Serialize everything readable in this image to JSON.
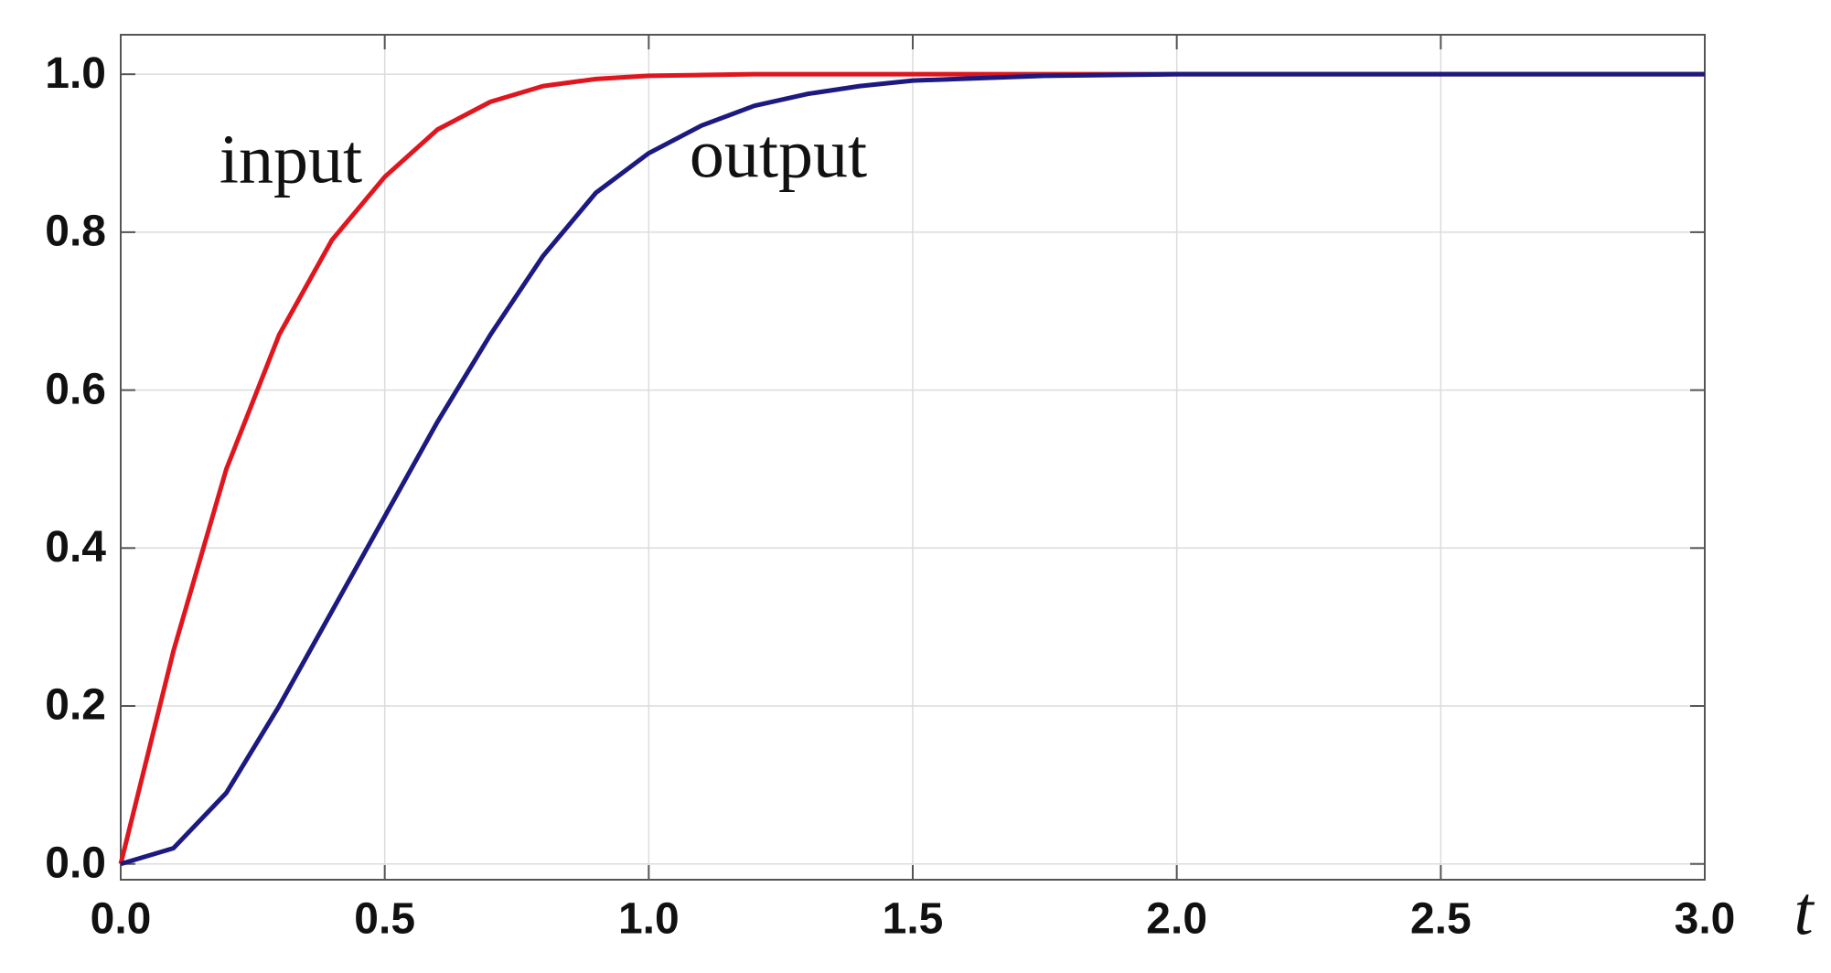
{
  "chart_data": {
    "type": "line",
    "x_label": "t",
    "x": [
      0,
      0.1,
      0.2,
      0.3,
      0.4,
      0.5,
      0.6,
      0.7,
      0.8,
      0.9,
      1.0,
      1.1,
      1.2,
      1.3,
      1.4,
      1.5,
      1.75,
      2.0,
      2.5,
      3.0
    ],
    "series": [
      {
        "name": "input",
        "color": "#e0161e",
        "values": [
          0,
          0.27,
          0.5,
          0.67,
          0.79,
          0.87,
          0.93,
          0.965,
          0.985,
          0.994,
          0.998,
          0.999,
          1,
          1,
          1,
          1,
          1,
          1,
          1,
          1
        ]
      },
      {
        "name": "output",
        "color": "#1c1a80",
        "values": [
          0,
          0.02,
          0.09,
          0.2,
          0.32,
          0.44,
          0.56,
          0.67,
          0.77,
          0.85,
          0.9,
          0.935,
          0.96,
          0.975,
          0.985,
          0.992,
          0.998,
          1,
          1,
          1
        ]
      }
    ],
    "xlim": [
      0,
      3
    ],
    "ylim": [
      -0.02,
      1.05
    ],
    "xticks": [
      {
        "value": 0,
        "label": "0.0"
      },
      {
        "value": 0.5,
        "label": "0.5"
      },
      {
        "value": 1,
        "label": "1.0"
      },
      {
        "value": 1.5,
        "label": "1.5"
      },
      {
        "value": 2,
        "label": "2.0"
      },
      {
        "value": 2.5,
        "label": "2.5"
      },
      {
        "value": 3,
        "label": "3.0"
      }
    ],
    "yticks": [
      {
        "value": 0,
        "label": "0.0"
      },
      {
        "value": 0.2,
        "label": "0.2"
      },
      {
        "value": 0.4,
        "label": "0.4"
      },
      {
        "value": 0.6,
        "label": "0.6"
      },
      {
        "value": 0.8,
        "label": "0.8"
      },
      {
        "value": 1,
        "label": "1.0"
      }
    ],
    "grid": true
  }
}
